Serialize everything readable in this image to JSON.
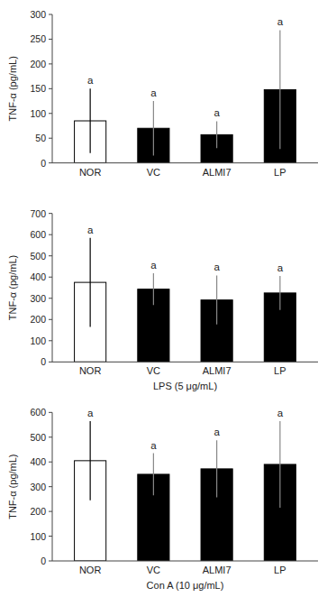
{
  "chart_data": [
    {
      "type": "bar",
      "y_label": "TNF-α (pg/mL)",
      "categories": [
        "NOR",
        "VC",
        "ALMI7",
        "LP"
      ],
      "values": [
        85,
        70,
        57,
        148
      ],
      "errors": [
        65,
        55,
        27,
        120
      ],
      "colors": [
        "white",
        "black",
        "black",
        "black"
      ],
      "annotations": [
        "a",
        "a",
        "a",
        "a"
      ],
      "ylim": [
        0,
        300
      ],
      "yticks": [
        0,
        50,
        100,
        150,
        200,
        250,
        300
      ],
      "grid": false
    },
    {
      "type": "bar",
      "y_label": "TNF-α (pg/mL)",
      "x_label": "LPS (5 μg/mL)",
      "categories": [
        "NOR",
        "VC",
        "ALMI7",
        "LP"
      ],
      "values": [
        375,
        343,
        292,
        325
      ],
      "errors": [
        210,
        75,
        115,
        80
      ],
      "colors": [
        "white",
        "black",
        "black",
        "black"
      ],
      "annotations": [
        "a",
        "a",
        "a",
        "a"
      ],
      "ylim": [
        0,
        700
      ],
      "yticks": [
        0,
        100,
        200,
        300,
        400,
        500,
        600,
        700
      ],
      "grid": false
    },
    {
      "type": "bar",
      "y_label": "TNF-α (pg/mL)",
      "x_label": "Con A (10 μg/mL)",
      "categories": [
        "NOR",
        "VC",
        "ALMI7",
        "LP"
      ],
      "values": [
        405,
        350,
        372,
        390
      ],
      "errors": [
        160,
        85,
        115,
        175
      ],
      "colors": [
        "white",
        "black",
        "black",
        "black"
      ],
      "annotations": [
        "a",
        "a",
        "a",
        "a"
      ],
      "ylim": [
        0,
        600
      ],
      "yticks": [
        0,
        100,
        200,
        300,
        400,
        500,
        600
      ],
      "grid": false
    }
  ]
}
